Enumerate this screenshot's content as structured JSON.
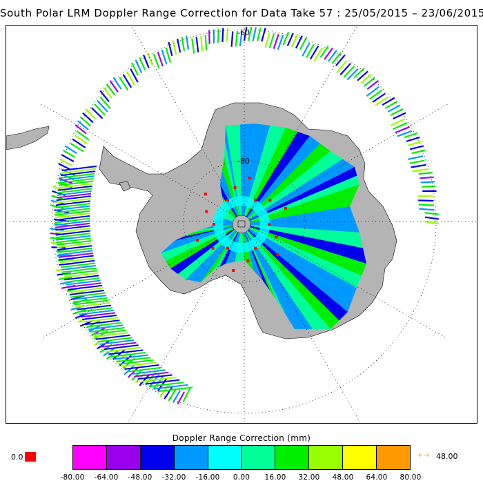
{
  "title": "South Polar LRM Doppler Range Correction for Data Take 57 : 25/05/2015 – 23/06/2015",
  "map": {
    "projection": "south-polar-stereographic",
    "graticule_labels": [
      "-60",
      "-80"
    ],
    "colors": {
      "land": "#b4b4b4",
      "coast_line": "#000000",
      "grid": "#000000",
      "background": "#ffffff",
      "center_marker": "#ff0000"
    }
  },
  "colorbar": {
    "title": "Doppler Range Correction (mm)",
    "ticks": [
      "-80.00",
      "-64.00",
      "-48.00",
      "-32.00",
      "-16.00",
      "0.00",
      "16.00",
      "32.00",
      "48.00",
      "64.00",
      "80.00"
    ],
    "colors": [
      "#ff00ff",
      "#9900ee",
      "#0000ee",
      "#0099ff",
      "#00ffff",
      "#00ff99",
      "#00ee00",
      "#99ff00",
      "#ffff00",
      "#ff9900"
    ],
    "zero_label": "0.0",
    "zero_color": "#ff0000",
    "overflow_arrow": "+→",
    "overflow_value": "48.00",
    "overflow_color": "#ff9900"
  },
  "chart_data": {
    "type": "heatmap",
    "title": "South Polar LRM Doppler Range Correction for Data Take 57 : 25/05/2015 – 23/06/2015",
    "colorbar_label": "Doppler Range Correction (mm)",
    "value_range": [
      -80.0,
      80.0
    ],
    "bins": [
      -80,
      -64,
      -48,
      -32,
      -16,
      0,
      16,
      32,
      48,
      64,
      80
    ],
    "latitude_circles": [
      -60,
      -80
    ],
    "dominant_values_interior": [
      -40,
      -24,
      8,
      24
    ],
    "dominant_values_ocean_ring": [
      -72,
      -40,
      8,
      24,
      40
    ],
    "overflow_count": "48.00",
    "zero_marker": "0.0"
  }
}
